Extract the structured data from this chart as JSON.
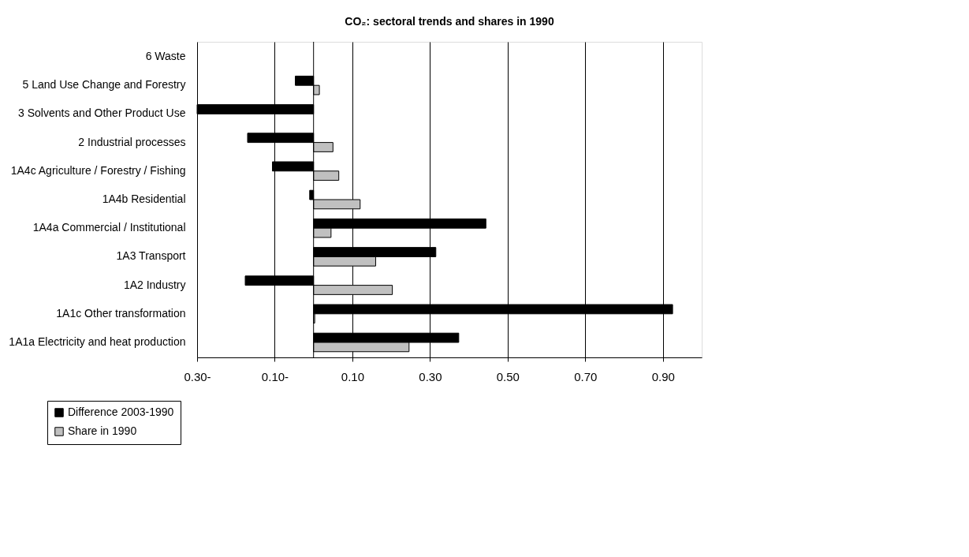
{
  "chart_data": {
    "type": "bar",
    "orientation": "horizontal",
    "title": "CO₂: sectoral trends and shares in 1990",
    "categories": [
      "6 Waste",
      "5 Land Use Change and Forestry",
      "3 Solvents and Other Product Use",
      "2 Industrial processes",
      "1A4c Agriculture / Forestry / Fishing",
      "1A4b Residential",
      "1A4a Commercial / Institutional",
      "1A3 Transport",
      "1A2 Industry",
      "1A1c Other transformation",
      "1A1a Electricity and heat production"
    ],
    "series": [
      {
        "name": "Difference 2003-1990",
        "color": "#000000",
        "values": [
          null,
          -0.047,
          -0.3,
          -0.17,
          -0.106,
          -0.01,
          0.444,
          0.315,
          -0.176,
          0.925,
          0.374
        ]
      },
      {
        "name": "Share in 1990",
        "color": "#c0c0c0",
        "values": [
          null,
          0.015,
          null,
          0.05,
          0.065,
          0.12,
          0.045,
          0.16,
          0.203,
          0.003,
          0.246
        ]
      }
    ],
    "xlim": [
      -0.3,
      1.0
    ],
    "xticks": [
      {
        "value": -0.3,
        "label": "0.30-"
      },
      {
        "value": -0.1,
        "label": "0.10-"
      },
      {
        "value": 0.1,
        "label": "0.10"
      },
      {
        "value": 0.3,
        "label": "0.30"
      },
      {
        "value": 0.5,
        "label": "0.50"
      },
      {
        "value": 0.7,
        "label": "0.70"
      },
      {
        "value": 0.9,
        "label": "0.90"
      }
    ],
    "grid": "x",
    "legend": "bottom left"
  }
}
